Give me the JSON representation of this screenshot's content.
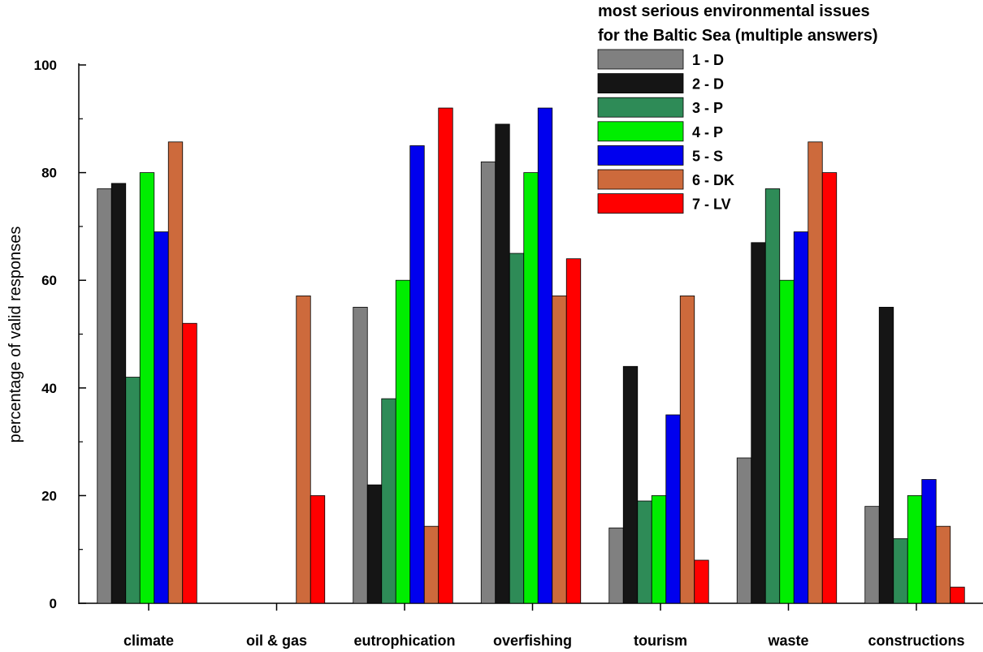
{
  "chart_data": {
    "type": "bar",
    "title_lines": [
      "most serious environmental issues",
      "for the Baltic Sea (multiple answers)"
    ],
    "xlabel": "",
    "ylabel": "percentage of valid responses",
    "ylim": [
      0,
      100
    ],
    "y_ticks": [
      0,
      20,
      40,
      60,
      80,
      100
    ],
    "grid": false,
    "legend_position": "top-right",
    "categories": [
      "climate",
      "oil & gas",
      "eutrophication",
      "overfishing",
      "tourism",
      "waste",
      "constructions"
    ],
    "series": [
      {
        "name": "1 - D",
        "color": "#808080",
        "values": [
          77,
          0,
          55,
          82,
          14,
          27,
          18
        ]
      },
      {
        "name": "2 - D",
        "color": "#151515",
        "values": [
          78,
          0,
          22,
          89,
          44,
          67,
          55
        ]
      },
      {
        "name": "3 - P",
        "color": "#2e8b57",
        "values": [
          42,
          0,
          38,
          65,
          19,
          77,
          12
        ]
      },
      {
        "name": "4 - P",
        "color": "#00ee00",
        "values": [
          80,
          0,
          60,
          80,
          20,
          60,
          20
        ]
      },
      {
        "name": "5 - S",
        "color": "#0000ee",
        "values": [
          69,
          0,
          85,
          92,
          35,
          69,
          23
        ]
      },
      {
        "name": "6 - DK",
        "color": "#cd6a3c",
        "values": [
          85.7,
          57.1,
          14.3,
          57.1,
          57.1,
          85.7,
          14.3
        ]
      },
      {
        "name": "7 - LV",
        "color": "#ff0000",
        "values": [
          52,
          20,
          92,
          64,
          8,
          80,
          3
        ]
      }
    ]
  }
}
